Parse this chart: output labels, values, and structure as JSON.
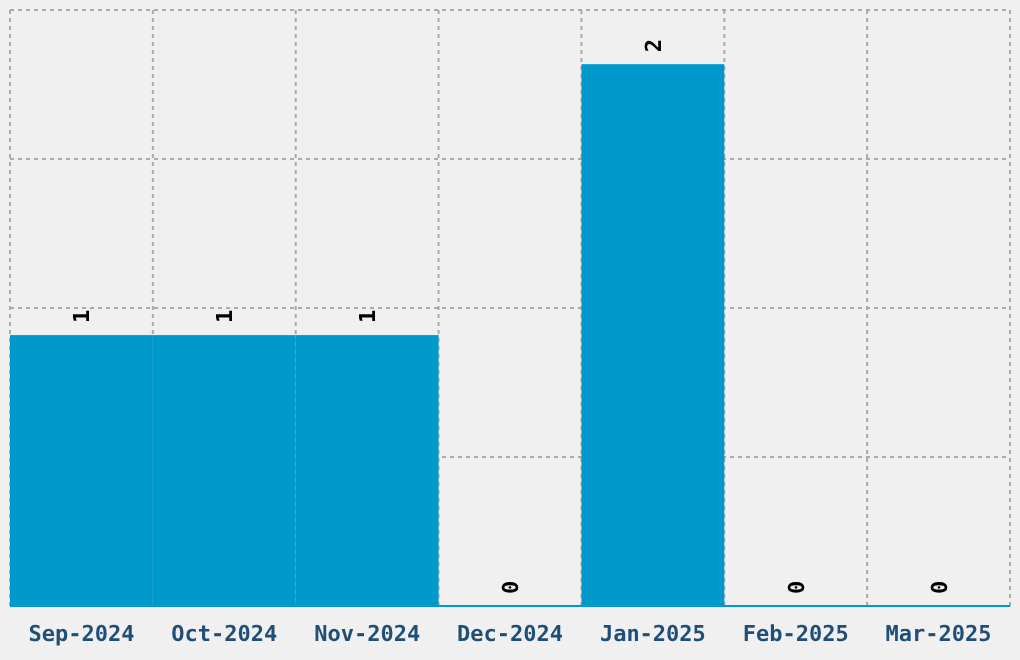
{
  "chart_data": {
    "type": "bar",
    "categories": [
      "Sep-2024",
      "Oct-2024",
      "Nov-2024",
      "Dec-2024",
      "Jan-2025",
      "Feb-2025",
      "Mar-2025"
    ],
    "values": [
      1,
      1,
      1,
      0,
      2,
      0,
      0
    ],
    "color": "#0099cc",
    "data_labels": true,
    "ylim": [
      0,
      2.2
    ],
    "yticks": [
      {
        "value": 0,
        "label": null
      },
      {
        "value": 0.55,
        "label": null
      },
      {
        "value": 1.1,
        "label": null
      },
      {
        "value": 1.65,
        "label": null
      },
      {
        "value": 2.2,
        "label": null
      }
    ],
    "tick_labels": "x",
    "grid": true
  }
}
